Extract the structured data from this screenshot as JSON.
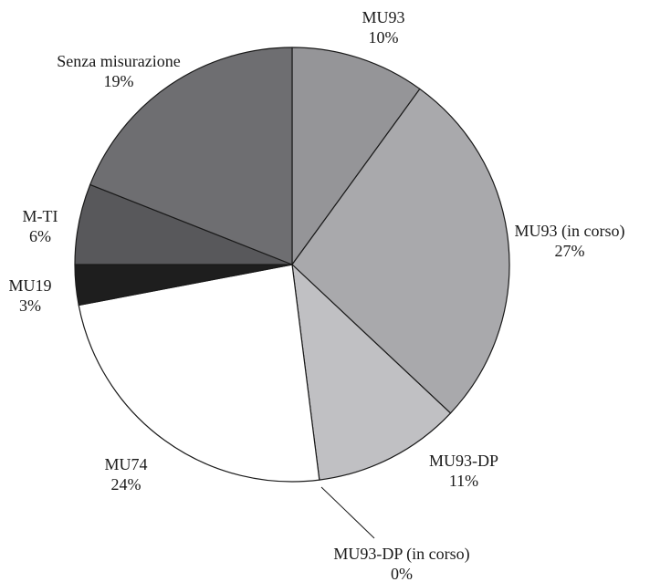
{
  "chart_data": {
    "type": "pie",
    "title": "",
    "start_angle_deg": 0,
    "direction": "clockwise",
    "slices": [
      {
        "label": "MU93",
        "value": 10,
        "display": "10%",
        "color": "#959598"
      },
      {
        "label": "MU93 (in corso)",
        "value": 27,
        "display": "27%",
        "color": "#a9a9ac"
      },
      {
        "label": "MU93-DP",
        "value": 11,
        "display": "11%",
        "color": "#c0c0c3"
      },
      {
        "label": "MU93-DP (in corso)",
        "value": 0,
        "display": "0%",
        "color": "#d8d8da"
      },
      {
        "label": "MU74",
        "value": 24,
        "display": "24%",
        "color": "#ffffff"
      },
      {
        "label": "MU19",
        "value": 3,
        "display": "3%",
        "color": "#1e1e1e"
      },
      {
        "label": "M-TI",
        "value": 6,
        "display": "6%",
        "color": "#58585b"
      },
      {
        "label": "Senza misurazione",
        "value": 19,
        "display": "19%",
        "color": "#6e6e71"
      }
    ],
    "legend": "none",
    "labels": "outside"
  }
}
